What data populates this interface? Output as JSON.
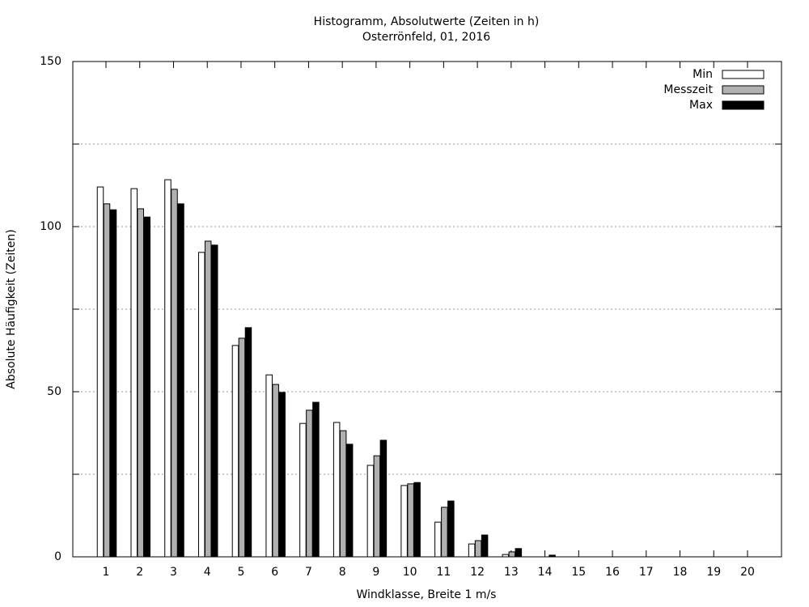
{
  "chart_data": {
    "type": "bar",
    "title": "Histogramm, Absolutwerte (Zeiten in h)",
    "subtitle": "Osterrönfeld, 01, 2016",
    "x_label": "Windklasse, Breite 1 m/s",
    "y_label": "Absolute Häufigkeit (Zeiten)",
    "categories": [
      "1",
      "2",
      "3",
      "4",
      "5",
      "6",
      "7",
      "8",
      "9",
      "10",
      "11",
      "12",
      "13",
      "14",
      "15",
      "16",
      "17",
      "18",
      "19",
      "20"
    ],
    "series": [
      {
        "name": "Min",
        "color": "#ffffff",
        "values": [
          112,
          111.5,
          114.2,
          92.2,
          64,
          55.1,
          40.4,
          40.7,
          27.7,
          21.6,
          10.5,
          3.9,
          0.7,
          0,
          0,
          0,
          0,
          0,
          0,
          0
        ]
      },
      {
        "name": "Messzeit",
        "color": "#b0b0b0",
        "values": [
          106.9,
          105.4,
          111.3,
          95.6,
          66.2,
          52.2,
          44.4,
          38.2,
          30.6,
          22.1,
          15,
          4.9,
          1.5,
          0,
          0,
          0,
          0,
          0,
          0,
          0
        ]
      },
      {
        "name": "Max",
        "color": "#000000",
        "values": [
          105.1,
          102.9,
          106.9,
          94.4,
          69.4,
          49.8,
          46.8,
          34.1,
          35.3,
          22.5,
          16.9,
          6.6,
          2.5,
          0.5,
          0,
          0,
          0,
          0,
          0,
          0
        ]
      }
    ],
    "ylim": [
      0,
      150
    ],
    "yticks": [
      0,
      50,
      100,
      150
    ],
    "minor_yticks": [
      25,
      75,
      125
    ],
    "grid": true,
    "legend": "top-right"
  }
}
